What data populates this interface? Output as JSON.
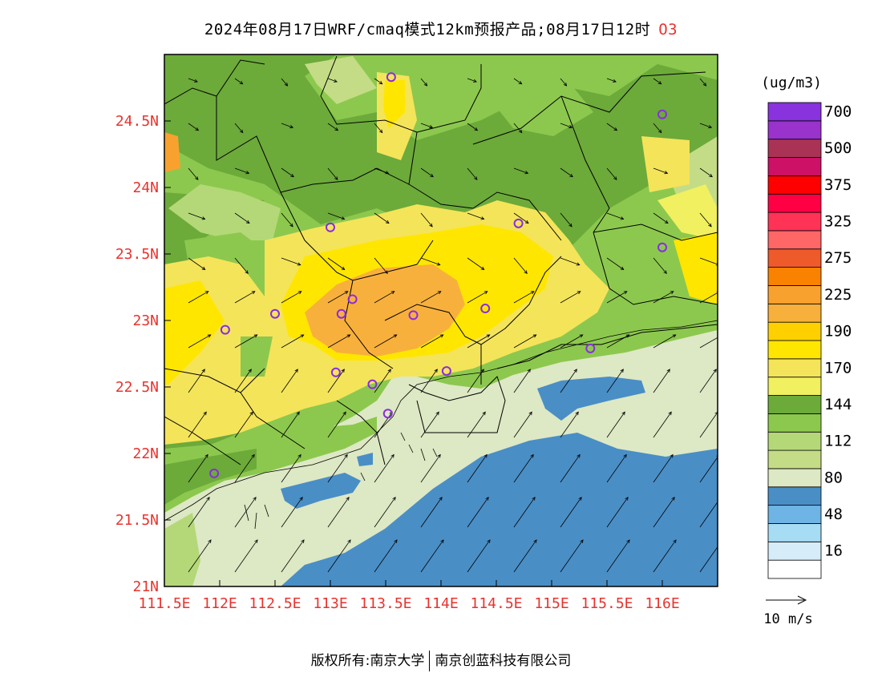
{
  "title": {
    "main": "2024年08月17日WRF/cmaq模式12km预报产品;08月17日12时",
    "species": "O3"
  },
  "colors": {
    "axis_label": "#e8332e",
    "species_label": "#e8332e",
    "station_marker": "#8a2be2"
  },
  "map": {
    "lon_range": [
      111.5,
      116.5
    ],
    "lat_range": [
      21.0,
      25.0
    ],
    "x_ticks": [
      {
        "value": 111.5,
        "label": "111.5E"
      },
      {
        "value": 112.0,
        "label": "112E"
      },
      {
        "value": 112.5,
        "label": "112.5E"
      },
      {
        "value": 113.0,
        "label": "113E"
      },
      {
        "value": 113.5,
        "label": "113.5E"
      },
      {
        "value": 114.0,
        "label": "114E"
      },
      {
        "value": 114.5,
        "label": "114.5E"
      },
      {
        "value": 115.0,
        "label": "115E"
      },
      {
        "value": 115.5,
        "label": "115.5E"
      },
      {
        "value": 116.0,
        "label": "116E"
      }
    ],
    "y_ticks": [
      {
        "value": 21.0,
        "label": "21N"
      },
      {
        "value": 21.5,
        "label": "21.5N"
      },
      {
        "value": 22.0,
        "label": "22N"
      },
      {
        "value": 22.5,
        "label": "22.5N"
      },
      {
        "value": 23.0,
        "label": "23N"
      },
      {
        "value": 23.5,
        "label": "23.5N"
      },
      {
        "value": 24.0,
        "label": "24N"
      },
      {
        "value": 24.5,
        "label": "24.5N"
      }
    ],
    "stations": [
      {
        "lon": 113.55,
        "lat": 24.83
      },
      {
        "lon": 116.0,
        "lat": 24.55
      },
      {
        "lon": 113.0,
        "lat": 23.7
      },
      {
        "lon": 114.7,
        "lat": 23.73
      },
      {
        "lon": 116.0,
        "lat": 23.55
      },
      {
        "lon": 112.5,
        "lat": 23.05
      },
      {
        "lon": 113.1,
        "lat": 23.05
      },
      {
        "lon": 113.2,
        "lat": 23.16
      },
      {
        "lon": 113.75,
        "lat": 23.04
      },
      {
        "lon": 114.4,
        "lat": 23.09
      },
      {
        "lon": 112.05,
        "lat": 22.93
      },
      {
        "lon": 113.05,
        "lat": 22.61
      },
      {
        "lon": 113.38,
        "lat": 22.52
      },
      {
        "lon": 114.05,
        "lat": 22.62
      },
      {
        "lon": 115.35,
        "lat": 22.79
      },
      {
        "lon": 113.52,
        "lat": 22.3
      },
      {
        "lon": 111.95,
        "lat": 21.85
      }
    ]
  },
  "legend": {
    "unit": "(ug/m3)",
    "bins": [
      {
        "color": "#ffffff",
        "label": ""
      },
      {
        "color": "#d6ecf8",
        "label": "16"
      },
      {
        "color": "#a6dcf4",
        "label": ""
      },
      {
        "color": "#6eb4e4",
        "label": "48"
      },
      {
        "color": "#4a8ec6",
        "label": ""
      },
      {
        "color": "#dde8c4",
        "label": "80"
      },
      {
        "color": "#c4dc86",
        "label": ""
      },
      {
        "color": "#b4d878",
        "label": "112"
      },
      {
        "color": "#8cc84e",
        "label": ""
      },
      {
        "color": "#6caa3a",
        "label": "144"
      },
      {
        "color": "#f0f060",
        "label": ""
      },
      {
        "color": "#f4e45a",
        "label": "170"
      },
      {
        "color": "#ffe600",
        "label": ""
      },
      {
        "color": "#ffd000",
        "label": "190"
      },
      {
        "color": "#f8b03c",
        "label": ""
      },
      {
        "color": "#f9a12e",
        "label": "225"
      },
      {
        "color": "#f98200",
        "label": ""
      },
      {
        "color": "#ee5a2a",
        "label": "275"
      },
      {
        "color": "#ff6666",
        "label": ""
      },
      {
        "color": "#ff3355",
        "label": "325"
      },
      {
        "color": "#ff0044",
        "label": ""
      },
      {
        "color": "#ff0000",
        "label": "375"
      },
      {
        "color": "#cc1166",
        "label": ""
      },
      {
        "color": "#aa3355",
        "label": "500"
      },
      {
        "color": "#9933cc",
        "label": ""
      },
      {
        "color": "#8833dd",
        "label": "700"
      }
    ]
  },
  "wind_scale": {
    "label": "10 m/s"
  },
  "footer": {
    "left": "版权所有:南京大学",
    "right": "南京创蓝科技有限公司"
  }
}
